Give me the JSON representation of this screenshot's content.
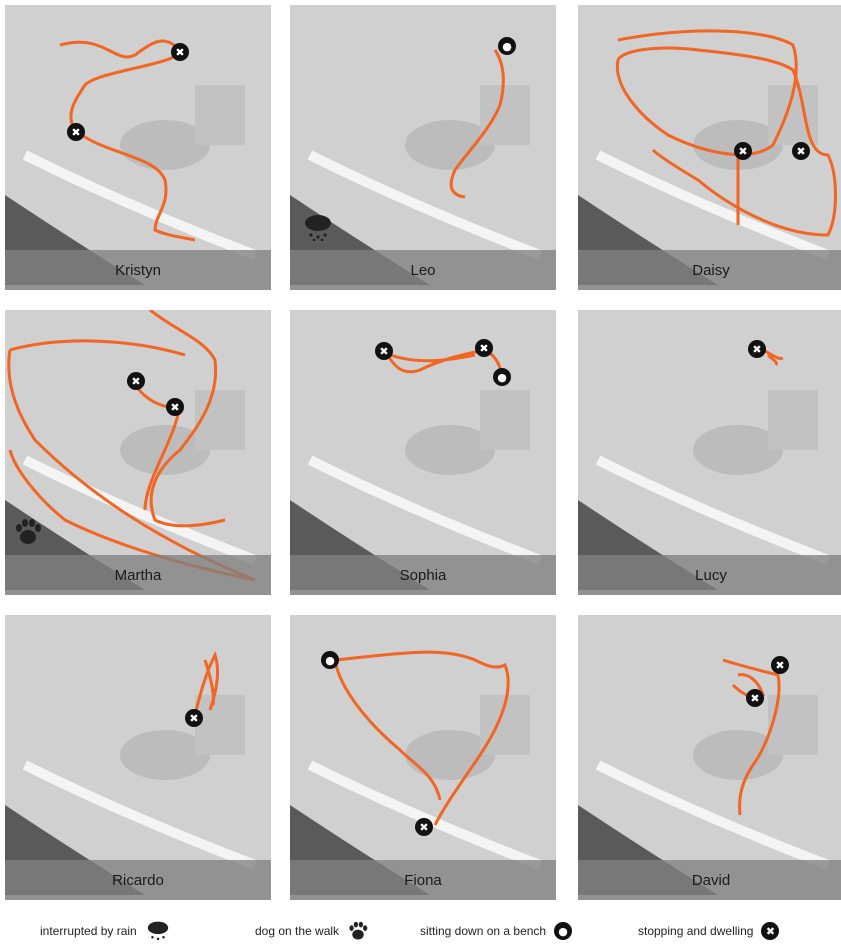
{
  "colors": {
    "route": "#f26522",
    "map_bg": "#d4d4d4",
    "river": "#555555",
    "marker": "#111111"
  },
  "panels": [
    {
      "name": "Kristyn",
      "markers": [
        "stop-icon",
        "stop-icon"
      ]
    },
    {
      "name": "Leo",
      "markers": [
        "bench-icon"
      ],
      "badge_icon": "rain-icon"
    },
    {
      "name": "Daisy",
      "markers": [
        "stop-icon",
        "stop-icon"
      ]
    },
    {
      "name": "Martha",
      "markers": [
        "stop-icon",
        "stop-icon"
      ],
      "badge_icon": "paw-icon"
    },
    {
      "name": "Sophia",
      "markers": [
        "stop-icon",
        "stop-icon",
        "bench-icon"
      ]
    },
    {
      "name": "Lucy",
      "markers": [
        "stop-icon"
      ]
    },
    {
      "name": "Ricardo",
      "markers": [
        "stop-icon"
      ]
    },
    {
      "name": "Fiona",
      "markers": [
        "bench-icon",
        "stop-icon"
      ]
    },
    {
      "name": "David",
      "markers": [
        "stop-icon",
        "stop-icon"
      ]
    }
  ],
  "legend": {
    "rain": "interrupted by rain",
    "dog": "dog on the walk",
    "bench": "sitting down on a bench",
    "stop": "stopping and dwelling"
  }
}
